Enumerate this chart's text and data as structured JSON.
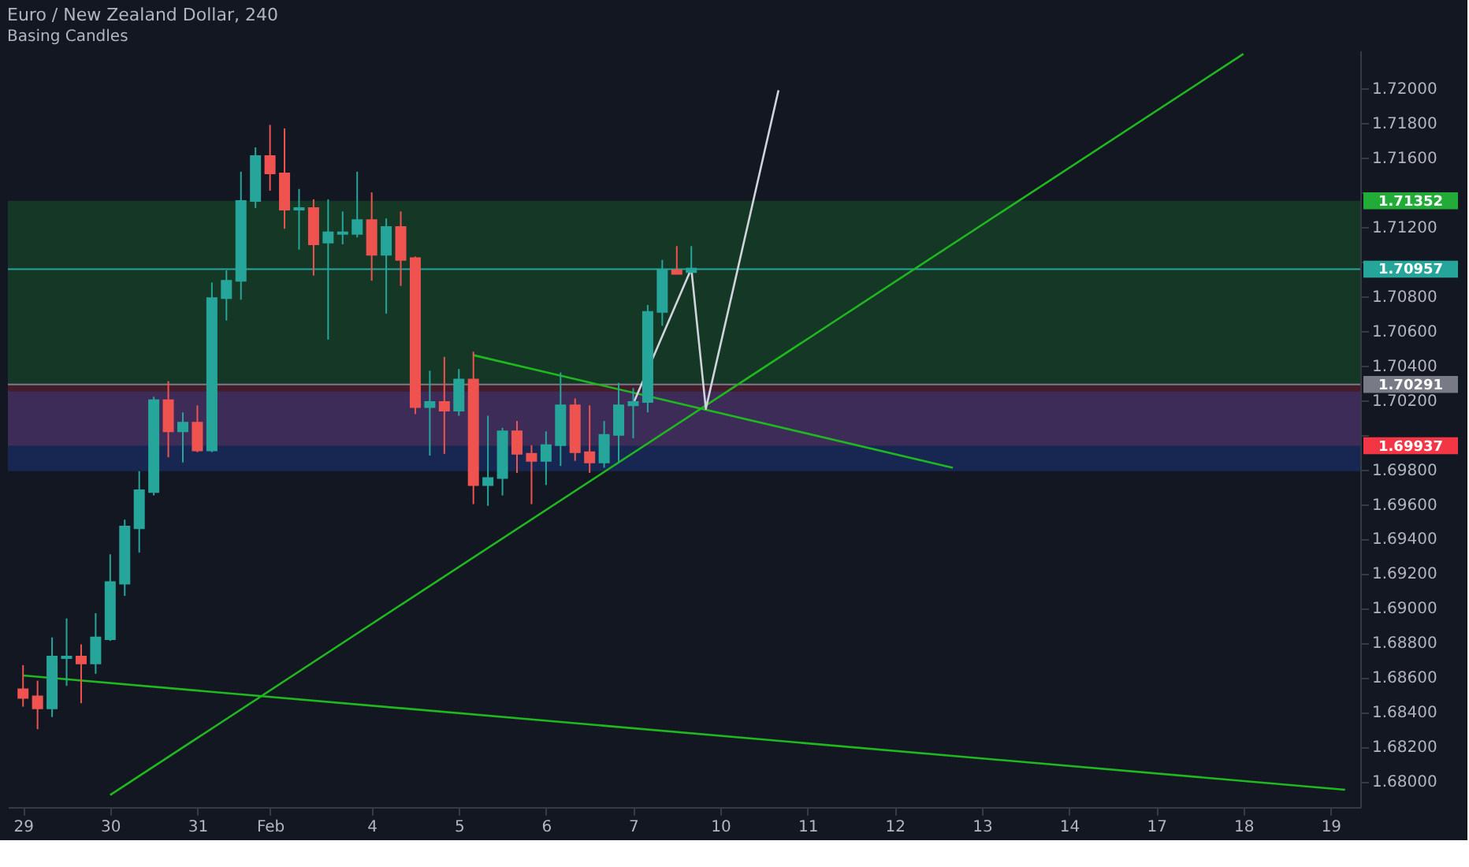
{
  "chart_data": {
    "type": "candlestick",
    "title": "Euro / New Zealand Dollar, 240",
    "subtitle": "Basing Candles",
    "categories": [
      "29",
      null,
      null,
      null,
      null,
      null,
      "30",
      null,
      null,
      null,
      null,
      null,
      "31",
      null,
      null,
      null,
      null,
      "Feb",
      null,
      null,
      null,
      null,
      null,
      null,
      "4",
      null,
      null,
      null,
      null,
      null,
      "5",
      null,
      null,
      null,
      null,
      null,
      "6",
      null,
      null,
      null,
      null,
      null,
      "7",
      null,
      null,
      null,
      null,
      null,
      "10",
      null,
      null,
      null,
      null,
      null,
      "11",
      null,
      null,
      null,
      null,
      null,
      "12",
      null,
      null,
      null,
      null,
      null,
      "13",
      null,
      null,
      null,
      null,
      null,
      "14",
      null,
      null,
      null,
      null,
      null,
      "17",
      null,
      null,
      null,
      null,
      null,
      "18",
      null,
      null,
      null,
      null,
      null,
      "19",
      null
    ],
    "ohlc": [
      [
        1.6853,
        1.6867,
        1.6843,
        1.6848
      ],
      [
        1.6849,
        1.6858,
        1.683,
        1.6842
      ],
      [
        1.6842,
        1.6883,
        1.6837,
        1.6872
      ],
      [
        1.6871,
        1.6894,
        1.6855,
        1.6872
      ],
      [
        1.6872,
        1.6879,
        1.6845,
        1.6868
      ],
      [
        1.6868,
        1.6897,
        1.6862,
        1.6883
      ],
      [
        1.6882,
        1.6931,
        1.6881,
        1.6915
      ],
      [
        1.6914,
        1.6951,
        1.6907,
        1.6947
      ],
      [
        1.6946,
        1.6979,
        1.6932,
        1.6968
      ],
      [
        1.6967,
        1.7022,
        1.6965,
        1.702
      ],
      [
        1.702,
        1.7031,
        1.6987,
        1.7002
      ],
      [
        1.7002,
        1.7013,
        1.6984,
        1.7007
      ],
      [
        1.7007,
        1.7017,
        1.699,
        1.6991
      ],
      [
        1.6991,
        1.7088,
        1.699,
        1.7079
      ],
      [
        1.7079,
        1.7095,
        1.7066,
        1.7089
      ],
      [
        1.7089,
        1.7152,
        1.7078,
        1.7135
      ],
      [
        1.7135,
        1.7166,
        1.7131,
        1.7161
      ],
      [
        1.7161,
        1.7179,
        1.7141,
        1.7151
      ],
      [
        1.7151,
        1.7177,
        1.7119,
        1.713
      ],
      [
        1.713,
        1.7142,
        1.7107,
        1.7131
      ],
      [
        1.7131,
        1.7136,
        1.7092,
        1.711
      ],
      [
        1.7111,
        1.7136,
        1.7055,
        1.7117
      ],
      [
        1.7116,
        1.7129,
        1.711,
        1.7117
      ],
      [
        1.7116,
        1.7152,
        1.7114,
        1.7124
      ],
      [
        1.7124,
        1.714,
        1.7089,
        1.7104
      ],
      [
        1.7104,
        1.7125,
        1.707,
        1.712
      ],
      [
        1.712,
        1.7129,
        1.7086,
        1.7101
      ],
      [
        1.7102,
        1.7103,
        1.7012,
        1.7016
      ],
      [
        1.7016,
        1.7037,
        1.6988,
        1.7019
      ],
      [
        1.7019,
        1.7045,
        1.6989,
        1.7014
      ],
      [
        1.7014,
        1.7038,
        1.7011,
        1.7032
      ],
      [
        1.7032,
        1.7048,
        1.696,
        1.6971
      ],
      [
        1.6971,
        1.7011,
        1.6959,
        1.6975
      ],
      [
        1.6975,
        1.7004,
        1.6965,
        1.7002
      ],
      [
        1.7002,
        1.7008,
        1.6978,
        1.6989
      ],
      [
        1.6989,
        1.6994,
        1.696,
        1.6985
      ],
      [
        1.6985,
        1.7002,
        1.6971,
        1.6994
      ],
      [
        1.6994,
        1.7036,
        1.6982,
        1.7017
      ],
      [
        1.7017,
        1.7021,
        1.6985,
        1.699
      ],
      [
        1.699,
        1.7017,
        1.6978,
        1.6984
      ],
      [
        1.6984,
        1.7008,
        1.6981,
        1.7
      ],
      [
        1.7,
        1.703,
        1.6984,
        1.7017
      ],
      [
        1.7017,
        1.7027,
        1.6998,
        1.7019
      ],
      [
        1.7019,
        1.7075,
        1.7013,
        1.7071
      ],
      [
        1.7071,
        1.7101,
        1.7063,
        1.7095
      ],
      [
        1.7095,
        1.7109,
        1.7093,
        1.7093
      ],
      [
        1.7094,
        1.7109,
        1.7094,
        1.7096
      ],
      null,
      null,
      null,
      null,
      null,
      null,
      null,
      null,
      null,
      null,
      null,
      null,
      null,
      null,
      null,
      null,
      null,
      null,
      null,
      null,
      null,
      null,
      null,
      null,
      null,
      null,
      null,
      null,
      null,
      null,
      null,
      null,
      null,
      null,
      null,
      null,
      null,
      null,
      null,
      null,
      null,
      null,
      null,
      null,
      null
    ],
    "colors": [
      "#ef5350",
      "#ef5350",
      "#26a69a",
      "#26a69a",
      "#ef5350",
      "#26a69a",
      "#26a69a",
      "#26a69a",
      "#26a69a",
      "#26a69a",
      "#ef5350",
      "#26a69a",
      "#ef5350",
      "#26a69a",
      "#26a69a",
      "#26a69a",
      "#26a69a",
      "#ef5350",
      "#ef5350",
      "#26a69a",
      "#ef5350",
      "#26a69a",
      "#26a69a",
      "#26a69a",
      "#ef5350",
      "#26a69a",
      "#ef5350",
      "#ef5350",
      "#26a69a",
      "#ef5350",
      "#26a69a",
      "#ef5350",
      "#26a69a",
      "#26a69a",
      "#ef5350",
      "#ef5350",
      "#26a69a",
      "#26a69a",
      "#ef5350",
      "#ef5350",
      "#26a69a",
      "#26a69a",
      "#26a69a",
      "#26a69a",
      "#26a69a",
      "#ef5350",
      "#26a69a",
      null,
      null,
      null,
      null,
      null,
      null,
      null,
      null,
      null,
      null,
      null,
      null,
      null,
      null,
      null,
      null,
      null,
      null,
      null,
      null,
      null,
      null,
      null,
      null,
      null,
      null,
      null,
      null,
      null,
      null,
      null,
      null,
      null,
      null,
      null,
      null,
      null,
      null,
      null,
      null,
      null,
      null,
      null,
      null,
      null
    ],
    "series": [
      {
        "type": "line",
        "color": "#1fb81f",
        "values": [
          null,
          null,
          null,
          null,
          null,
          null,
          1.6792,
          null,
          null,
          null,
          null,
          null,
          null,
          null,
          null,
          null,
          null,
          null,
          null,
          null,
          null,
          null,
          null,
          null,
          null,
          null,
          null,
          null,
          null,
          null,
          null,
          null,
          null,
          null,
          null,
          null,
          null,
          null,
          null,
          null,
          null,
          null,
          null,
          null,
          null,
          null,
          null,
          null,
          null,
          null,
          null,
          null,
          null,
          null,
          null,
          null,
          null,
          null,
          null,
          null,
          null,
          null,
          null,
          null,
          null,
          null,
          null,
          null,
          null,
          null,
          null,
          null,
          null,
          null,
          null,
          null,
          null,
          null,
          null,
          null,
          null,
          null,
          null,
          null,
          1.722,
          null,
          null,
          null,
          null,
          null,
          null,
          null
        ]
      },
      {
        "type": "line",
        "color": "#1fb81f",
        "values": [
          1.6861,
          null,
          null,
          null,
          null,
          null,
          null,
          null,
          null,
          null,
          null,
          null,
          null,
          null,
          null,
          null,
          null,
          null,
          null,
          null,
          null,
          null,
          null,
          null,
          null,
          null,
          null,
          null,
          null,
          null,
          null,
          null,
          null,
          null,
          null,
          null,
          null,
          null,
          null,
          null,
          null,
          null,
          null,
          null,
          null,
          null,
          null,
          null,
          null,
          null,
          null,
          null,
          null,
          null,
          null,
          null,
          null,
          null,
          null,
          null,
          null,
          null,
          null,
          null,
          null,
          null,
          null,
          null,
          null,
          null,
          null,
          null,
          null,
          null,
          null,
          null,
          null,
          null,
          null,
          null,
          null,
          null,
          null,
          null,
          null,
          null,
          null,
          null,
          null,
          null,
          null,
          1.6795
        ]
      },
      {
        "type": "line",
        "color": "#1fb81f",
        "values": [
          null,
          null,
          null,
          null,
          null,
          null,
          null,
          null,
          null,
          null,
          null,
          null,
          null,
          null,
          null,
          null,
          null,
          null,
          null,
          null,
          null,
          null,
          null,
          null,
          null,
          null,
          null,
          null,
          null,
          null,
          null,
          1.7046,
          null,
          null,
          null,
          null,
          null,
          null,
          null,
          null,
          null,
          null,
          null,
          null,
          null,
          null,
          null,
          null,
          null,
          null,
          null,
          null,
          null,
          null,
          null,
          null,
          null,
          null,
          null,
          null,
          null,
          null,
          null,
          null,
          1.6981,
          null,
          null,
          null,
          null,
          null,
          null,
          null,
          null,
          null,
          null,
          null,
          null,
          null,
          null,
          null,
          null,
          null,
          null,
          null,
          null,
          null,
          null,
          null,
          null,
          null,
          null,
          null
        ]
      },
      {
        "type": "line",
        "color": "#d1d4dc",
        "values": [
          null,
          null,
          null,
          null,
          null,
          null,
          null,
          null,
          null,
          null,
          null,
          null,
          null,
          null,
          null,
          null,
          null,
          null,
          null,
          null,
          null,
          null,
          null,
          null,
          null,
          null,
          null,
          null,
          null,
          null,
          null,
          null,
          null,
          null,
          null,
          null,
          null,
          null,
          null,
          null,
          null,
          null,
          1.7018,
          null,
          null,
          null,
          1.7096,
          1.7015,
          null,
          null,
          null,
          null,
          1.7199,
          null,
          null,
          null,
          null,
          null,
          null,
          null,
          null,
          null,
          null,
          null,
          null,
          null,
          null,
          null,
          null,
          null,
          null,
          null,
          null,
          null,
          null,
          null,
          null,
          null,
          null,
          null,
          null,
          null,
          null,
          null,
          null,
          null,
          null,
          null,
          null,
          null,
          null,
          null
        ]
      }
    ],
    "bands": [
      {
        "axis": "y",
        "from": 1.70291,
        "to": 1.71352,
        "label": "1.71352",
        "color": "#22ab37"
      },
      {
        "axis": "y",
        "from": 1.69937,
        "to": 1.70291,
        "label": "1.69937",
        "color": "#f23645"
      },
      {
        "axis": "y",
        "from": 1.6979,
        "to": 1.7025,
        "color": "#2962ff"
      }
    ],
    "ref_lines": [
      {
        "axis": "y",
        "value": 1.70957,
        "label": "1.70957",
        "color": "#26a69a"
      },
      {
        "axis": "y",
        "value": 1.70291,
        "label": "1.70291",
        "color": "#787b86"
      }
    ],
    "ylim": [
      1.6785,
      1.7222
    ],
    "yticks": [
      {
        "value": 1.68,
        "label": "1.68000"
      },
      {
        "value": 1.682,
        "label": "1.68200"
      },
      {
        "value": 1.684,
        "label": "1.68400"
      },
      {
        "value": 1.686,
        "label": "1.68600"
      },
      {
        "value": 1.688,
        "label": "1.68800"
      },
      {
        "value": 1.69,
        "label": "1.69000"
      },
      {
        "value": 1.692,
        "label": "1.69200"
      },
      {
        "value": 1.694,
        "label": "1.69400"
      },
      {
        "value": 1.696,
        "label": "1.69600"
      },
      {
        "value": 1.698,
        "label": "1.69800"
      },
      {
        "value": 1.7,
        "label": null
      },
      {
        "value": 1.702,
        "label": "1.70200"
      },
      {
        "value": 1.704,
        "label": "1.70400"
      },
      {
        "value": 1.706,
        "label": "1.70600"
      },
      {
        "value": 1.708,
        "label": "1.70800"
      },
      {
        "value": 1.71,
        "label": null
      },
      {
        "value": 1.712,
        "label": "1.71200"
      },
      {
        "value": 1.714,
        "label": null
      },
      {
        "value": 1.716,
        "label": "1.71600"
      },
      {
        "value": 1.718,
        "label": "1.71800"
      },
      {
        "value": 1.72,
        "label": "1.72000"
      }
    ],
    "grid": false
  }
}
